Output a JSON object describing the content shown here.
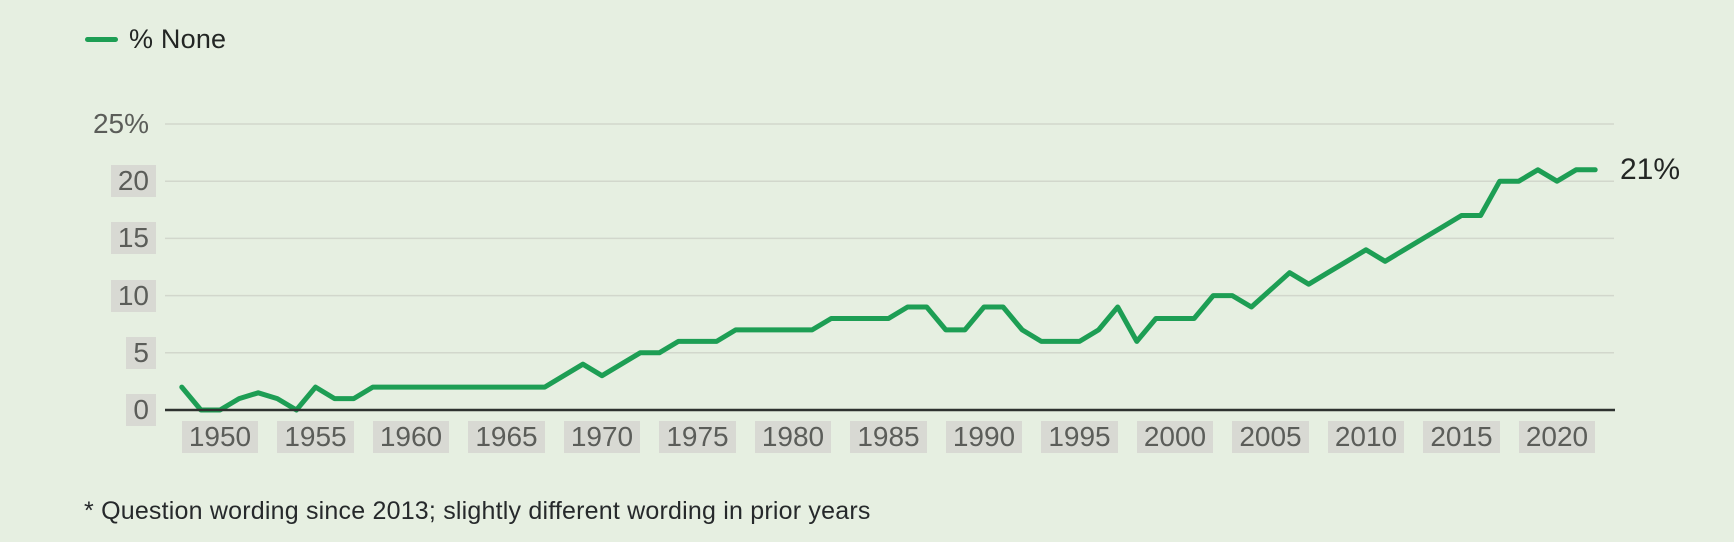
{
  "legend": {
    "label": "% None"
  },
  "end_label": "21%",
  "footnote": "* Question wording since 2013; slightly different wording in prior years",
  "colors": {
    "background": "#e6efe1",
    "line": "#1d9e54",
    "gridline": "#d2d7cc",
    "axis": "#2e322f",
    "tick_text": "#5b5d59",
    "tick_chip": "#d8d9d3",
    "text": "#232624"
  },
  "chart_data": {
    "type": "line",
    "title": "",
    "xlabel": "",
    "ylabel": "",
    "xlim": [
      1948,
      2022
    ],
    "ylim": [
      0,
      25
    ],
    "grid": true,
    "legend_position": "top-left",
    "yticks": [
      {
        "value": 0,
        "label": "0",
        "chip": true,
        "grid": false
      },
      {
        "value": 5,
        "label": "5",
        "chip": true,
        "grid": true
      },
      {
        "value": 10,
        "label": "10",
        "chip": true,
        "grid": true
      },
      {
        "value": 15,
        "label": "15",
        "chip": true,
        "grid": true
      },
      {
        "value": 20,
        "label": "20",
        "chip": true,
        "grid": true
      },
      {
        "value": 25,
        "label": "25%",
        "chip": false,
        "grid": true
      }
    ],
    "xticks": [
      1950,
      1955,
      1960,
      1965,
      1970,
      1975,
      1980,
      1985,
      1990,
      1995,
      2000,
      2005,
      2010,
      2015,
      2020
    ],
    "series": [
      {
        "name": "% None",
        "end_value_label": "21%",
        "points": [
          [
            1948,
            2
          ],
          [
            1949,
            0
          ],
          [
            1950,
            0
          ],
          [
            1951,
            1
          ],
          [
            1952,
            1.5
          ],
          [
            1953,
            1
          ],
          [
            1954,
            0
          ],
          [
            1955,
            2
          ],
          [
            1956,
            1
          ],
          [
            1957,
            1
          ],
          [
            1958,
            2
          ],
          [
            1962,
            2
          ],
          [
            1967,
            2
          ],
          [
            1969,
            4
          ],
          [
            1970,
            3
          ],
          [
            1972,
            5
          ],
          [
            1973,
            5
          ],
          [
            1974,
            6
          ],
          [
            1976,
            6
          ],
          [
            1977,
            7
          ],
          [
            1981,
            7
          ],
          [
            1982,
            8
          ],
          [
            1985,
            8
          ],
          [
            1986,
            9
          ],
          [
            1987,
            9
          ],
          [
            1988,
            7
          ],
          [
            1989,
            7
          ],
          [
            1990,
            9
          ],
          [
            1991,
            9
          ],
          [
            1992,
            7
          ],
          [
            1993,
            6
          ],
          [
            1995,
            6
          ],
          [
            1996,
            7
          ],
          [
            1997,
            9
          ],
          [
            1998,
            6
          ],
          [
            1999,
            8
          ],
          [
            2001,
            8
          ],
          [
            2002,
            10
          ],
          [
            2003,
            10
          ],
          [
            2004,
            9
          ],
          [
            2006,
            12
          ],
          [
            2007,
            11
          ],
          [
            2008,
            12
          ],
          [
            2009,
            13
          ],
          [
            2010,
            14
          ],
          [
            2011,
            13
          ],
          [
            2012,
            14
          ],
          [
            2013,
            15
          ],
          [
            2014,
            16
          ],
          [
            2015,
            17
          ],
          [
            2016,
            17
          ],
          [
            2017,
            20
          ],
          [
            2018,
            20
          ],
          [
            2019,
            21
          ],
          [
            2020,
            20
          ],
          [
            2021,
            21
          ],
          [
            2022,
            21
          ]
        ]
      }
    ]
  }
}
